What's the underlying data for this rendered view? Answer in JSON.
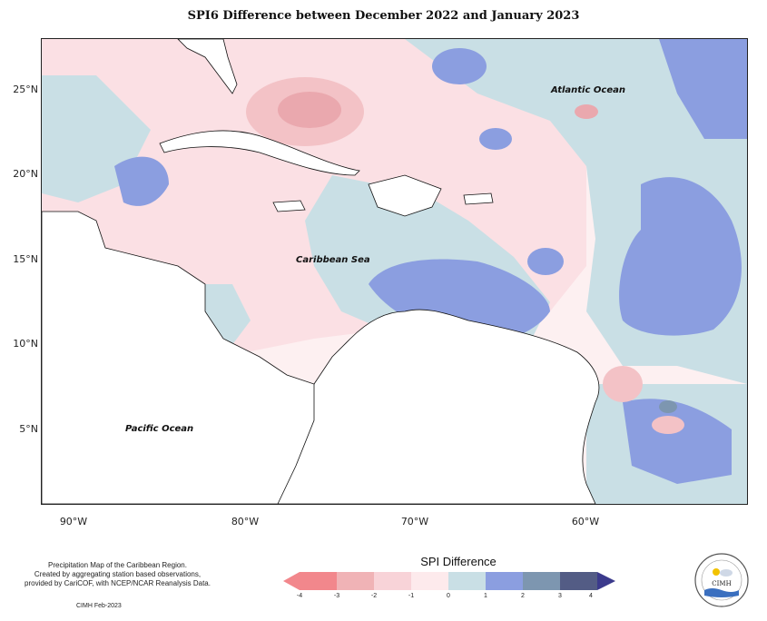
{
  "title": "SPI6 Difference between December 2022 and January 2023",
  "map": {
    "lon_ticks": [
      "90°W",
      "80°W",
      "70°W",
      "60°W"
    ],
    "lat_ticks": [
      "25°N",
      "20°N",
      "15°N",
      "10°N",
      "5°N"
    ],
    "labels": {
      "atlantic": "Atlantic Ocean",
      "caribbean": "Caribbean Sea",
      "pacific": "Pacific Ocean"
    }
  },
  "notes": {
    "line1": "Precipitation Map of the Caribbean Region.",
    "line2": "Created by aggregating station based observations,",
    "line3": "provided by CariCOF, with NCEP/NCAR Reanalysis Data.",
    "credit": "CIMH Feb-2023"
  },
  "legend": {
    "title": "SPI Difference",
    "ticks": [
      "-4",
      "-3",
      "-2",
      "-1",
      "0",
      "1",
      "2",
      "3",
      "4"
    ],
    "colors": [
      "#f2878c",
      "#f0b3b6",
      "#f8d3d8",
      "#fdeaec",
      "#c9dfe5",
      "#8b9ee0",
      "#7d96b0",
      "#535c85",
      "#3b3a8c"
    ]
  },
  "logo": {
    "text": "CIMH"
  }
}
